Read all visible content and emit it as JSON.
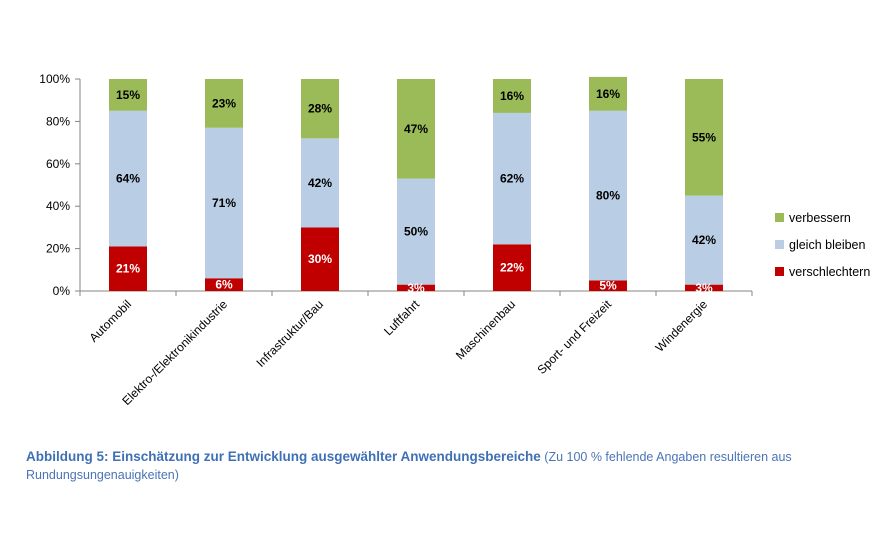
{
  "chart_data": {
    "type": "bar",
    "stacked": true,
    "percent": true,
    "categories": [
      "Automobil",
      "Elektro-/Elektronikindustrie",
      "Infrastruktur/Bau",
      "Luftfahrt",
      "Maschinenbau",
      "Sport- und Freizeit",
      "Windenergie"
    ],
    "series": [
      {
        "name": "verschlechtern",
        "color": "#c00000",
        "values": [
          21,
          6,
          30,
          3,
          22,
          5,
          3
        ]
      },
      {
        "name": "gleich bleiben",
        "color": "#b9cde5",
        "values": [
          64,
          71,
          42,
          50,
          62,
          80,
          42
        ]
      },
      {
        "name": "verbessern",
        "color": "#9bbb59",
        "values": [
          15,
          23,
          28,
          47,
          16,
          16,
          55
        ]
      }
    ],
    "y_ticks": [
      "0%",
      "20%",
      "40%",
      "60%",
      "80%",
      "100%"
    ],
    "ylim": [
      0,
      100
    ],
    "legend_position": "right",
    "grid": false
  },
  "caption": {
    "main": "Abbildung 5: Einschätzung zur Entwicklung ausgewählter Anwendungsbereiche",
    "note": " (Zu 100 % fehlende Angaben resultieren aus Rundungsungenauigkeiten)"
  }
}
